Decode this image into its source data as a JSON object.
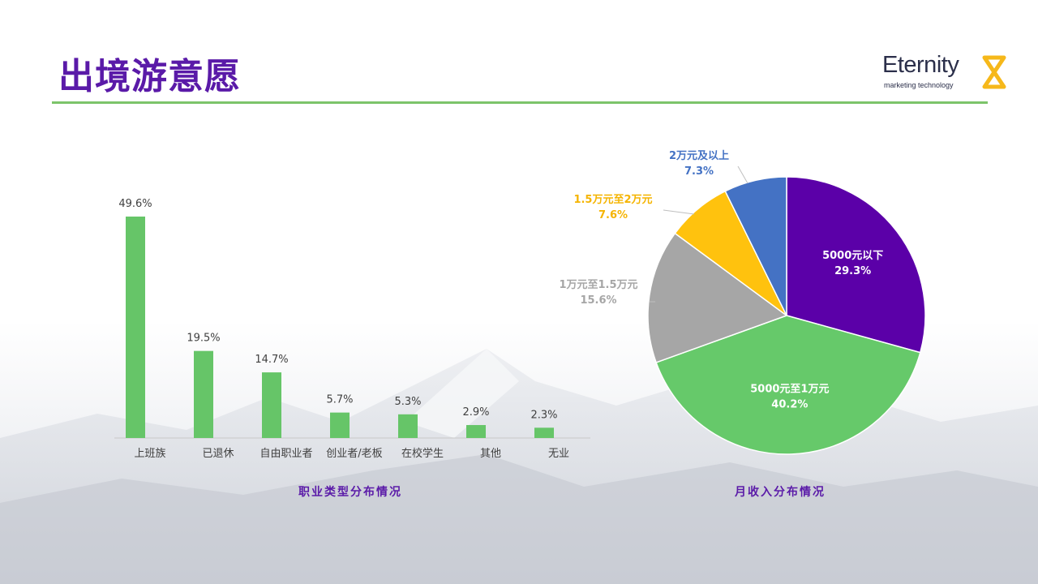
{
  "page": {
    "title": "出境游意愿",
    "brand": {
      "name": "Eternity",
      "tagline": "marketing technology",
      "accent": "#f6b81a"
    }
  },
  "colors": {
    "title": "#5a1aa8",
    "rule": "#7cc46a",
    "bar": "#66c568"
  },
  "chart_data": [
    {
      "type": "bar",
      "categories": [
        "上班族",
        "已退休",
        "自由职业者",
        "创业者/老板",
        "在校学生",
        "其他",
        "无业"
      ],
      "values": [
        49.6,
        19.5,
        14.7,
        5.7,
        5.3,
        2.9,
        2.3
      ],
      "data_labels": [
        "49.6%",
        "19.5%",
        "14.7%",
        "5.7%",
        "5.3%",
        "2.9%",
        "2.3%"
      ],
      "title": "职业类型分布情况",
      "xlabel": "",
      "ylabel": "",
      "ylim": [
        0,
        50
      ],
      "grid": false
    },
    {
      "type": "pie",
      "title": "月收入分布情况",
      "slices": [
        {
          "label": "5000元以下",
          "value": 29.3,
          "value_label": "29.3%",
          "color": "#5b00a8",
          "label_color": "#ffffff"
        },
        {
          "label": "5000元至1万元",
          "value": 40.2,
          "value_label": "40.2%",
          "color": "#66c96a",
          "label_color": "#ffffff"
        },
        {
          "label": "1万元至1.5万元",
          "value": 15.6,
          "value_label": "15.6%",
          "color": "#a6a6a6",
          "label_color": "#a6a6a6"
        },
        {
          "label": "1.5万元至2万元",
          "value": 7.6,
          "value_label": "7.6%",
          "color": "#ffc20e",
          "label_color": "#f5b400"
        },
        {
          "label": "2万元及以上",
          "value": 7.3,
          "value_label": "7.3%",
          "color": "#4472c4",
          "label_color": "#4472c4"
        }
      ]
    }
  ]
}
